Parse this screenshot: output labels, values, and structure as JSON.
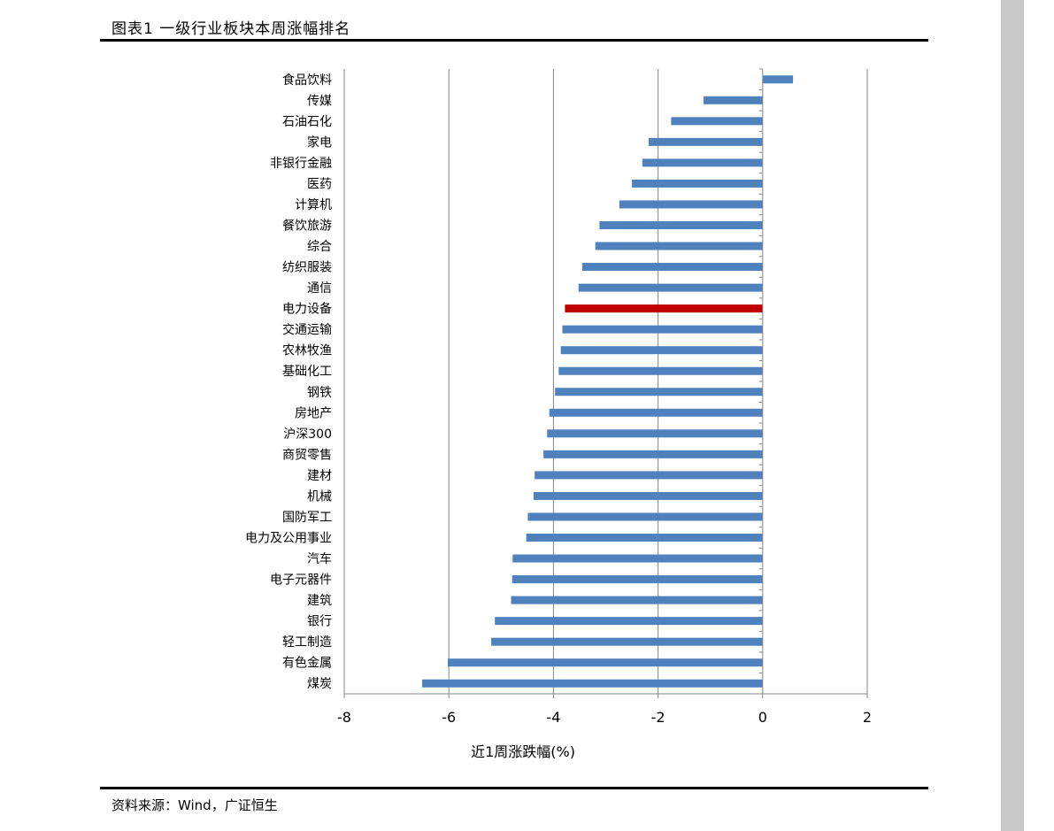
{
  "header": {
    "title": "图表1 一级行业板块本周涨幅排名"
  },
  "footer": {
    "source": "资料来源：Wind，广证恒生"
  },
  "chart_data": {
    "type": "bar",
    "orientation": "horizontal",
    "title": "",
    "xlabel": "近1周涨跌幅(%)",
    "ylabel": "",
    "xlim": [
      -8,
      2
    ],
    "xticks": [
      -8,
      -6,
      -4,
      -2,
      0,
      2
    ],
    "grid": "vertical",
    "legend": "none",
    "categories": [
      "食品饮料",
      "传媒",
      "石油石化",
      "家电",
      "非银行金融",
      "医药",
      "计算机",
      "餐饮旅游",
      "综合",
      "纺织服装",
      "通信",
      "电力设备",
      "交通运输",
      "农林牧渔",
      "基础化工",
      "钢铁",
      "房地产",
      "沪深300",
      "商贸零售",
      "建材",
      "机械",
      "国防军工",
      "电力及公用事业",
      "汽车",
      "电子元器件",
      "建筑",
      "银行",
      "轻工制造",
      "有色金属",
      "煤炭"
    ],
    "values": [
      0.58,
      -1.13,
      -1.75,
      -2.18,
      -2.3,
      -2.5,
      -2.74,
      -3.12,
      -3.2,
      -3.45,
      -3.52,
      -3.78,
      -3.83,
      -3.86,
      -3.9,
      -3.97,
      -4.08,
      -4.12,
      -4.19,
      -4.36,
      -4.38,
      -4.49,
      -4.52,
      -4.78,
      -4.79,
      -4.81,
      -5.12,
      -5.19,
      -6.02,
      -6.51
    ],
    "highlight": "电力设备",
    "colors": {
      "bar": "#4f81bd",
      "highlight": "#c00000",
      "grid": "#868686",
      "axis": "#868686"
    }
  }
}
